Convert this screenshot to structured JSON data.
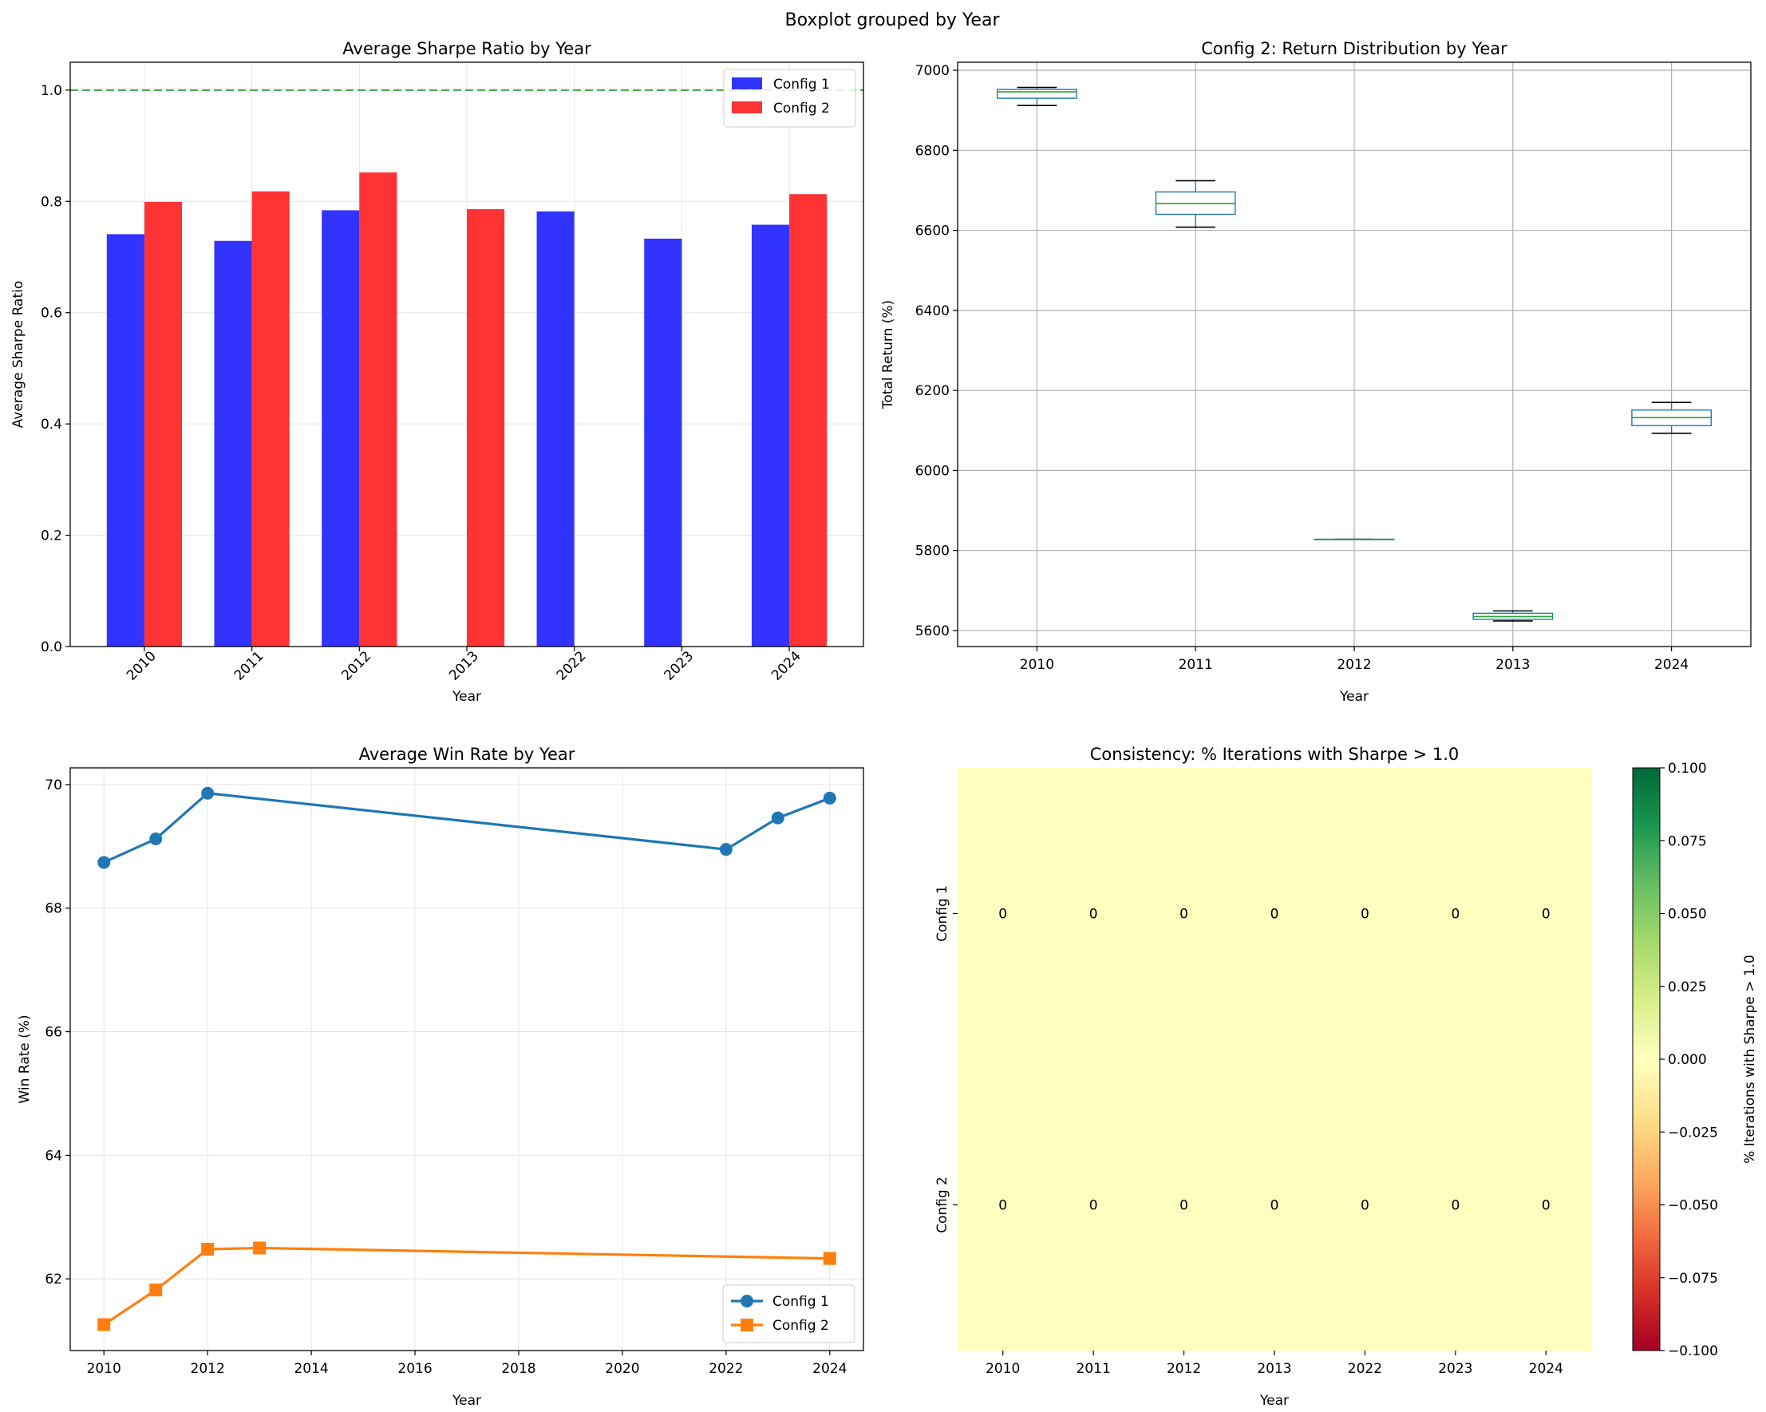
{
  "figure": {
    "suptitle": "Boxplot grouped by Year"
  },
  "chart_data": [
    {
      "type": "bar",
      "title": "Average Sharpe Ratio by Year",
      "xlabel": "Year",
      "ylabel": "Average Sharpe Ratio",
      "categories": [
        "2010",
        "2011",
        "2012",
        "2013",
        "2022",
        "2023",
        "2024"
      ],
      "series": [
        {
          "name": "Config 1",
          "color": "#3333ff",
          "values": [
            0.741,
            0.729,
            0.784,
            null,
            0.782,
            0.733,
            0.758
          ]
        },
        {
          "name": "Config 2",
          "color": "#ff3333",
          "values": [
            0.799,
            0.818,
            0.852,
            0.786,
            null,
            null,
            0.813
          ]
        }
      ],
      "reference_line": {
        "y": 1.0,
        "color": "#55aa55",
        "style": "dashed"
      },
      "ylim": [
        0,
        1.05
      ],
      "yticks": [
        0.0,
        0.2,
        0.4,
        0.6,
        0.8,
        1.0
      ],
      "ytick_labels": [
        "0.0",
        "0.2",
        "0.4",
        "0.6",
        "0.8",
        "1.0"
      ],
      "grid": true,
      "legend": "top-right"
    },
    {
      "type": "box",
      "title": "Config 2: Return Distribution by Year",
      "xlabel": "Year",
      "ylabel": "Total Return (%)",
      "categories": [
        "2010",
        "2011",
        "2012",
        "2013",
        "2024"
      ],
      "boxes": [
        {
          "min": 6912,
          "q1": 6930,
          "median": 6946,
          "q3": 6952,
          "max": 6957
        },
        {
          "min": 6608,
          "q1": 6640,
          "median": 6667,
          "q3": 6696,
          "max": 6724
        },
        {
          "min": 5828,
          "q1": 5828,
          "median": 5828,
          "q3": 5828,
          "max": 5828
        },
        {
          "min": 5624,
          "q1": 5628,
          "median": 5635,
          "q3": 5643,
          "max": 5649
        },
        {
          "min": 6093,
          "q1": 6112,
          "median": 6132,
          "q3": 6151,
          "max": 6170
        }
      ],
      "ylim": [
        5560,
        7020
      ],
      "yticks": [
        5600,
        5800,
        6000,
        6200,
        6400,
        6600,
        6800,
        7000
      ],
      "ytick_labels": [
        "5600",
        "5800",
        "6000",
        "6200",
        "6400",
        "6600",
        "6800",
        "7000"
      ],
      "box_color": "#1f77b4",
      "median_color": "#2ca02c",
      "grid": true
    },
    {
      "type": "line",
      "title": "Average Win Rate by Year",
      "xlabel": "Year",
      "ylabel": "Win Rate (%)",
      "series": [
        {
          "name": "Config 1",
          "color": "#1f77b4",
          "marker": "circle",
          "x": [
            2010,
            2011,
            2012,
            2022,
            2023,
            2024
          ],
          "y": [
            68.74,
            69.12,
            69.86,
            68.95,
            69.46,
            69.78
          ]
        },
        {
          "name": "Config 2",
          "color": "#ff7f0e",
          "marker": "square",
          "x": [
            2010,
            2011,
            2012,
            2013,
            2024
          ],
          "y": [
            61.26,
            61.82,
            62.48,
            62.5,
            62.33
          ]
        }
      ],
      "xlim": [
        2009.35,
        2024.65
      ],
      "ylim": [
        60.84,
        70.27
      ],
      "xticks": [
        2010,
        2012,
        2014,
        2016,
        2018,
        2020,
        2022,
        2024
      ],
      "xtick_labels": [
        "2010",
        "2012",
        "2014",
        "2016",
        "2018",
        "2020",
        "2022",
        "2024"
      ],
      "yticks": [
        62,
        64,
        66,
        68,
        70
      ],
      "ytick_labels": [
        "62",
        "64",
        "66",
        "68",
        "70"
      ],
      "grid": true,
      "legend": "bottom-right"
    },
    {
      "type": "heatmap",
      "title": "Consistency: % Iterations with Sharpe > 1.0",
      "xlabel": "Year",
      "columns": [
        "2010",
        "2011",
        "2012",
        "2013",
        "2022",
        "2023",
        "2024"
      ],
      "rows": [
        "Config 1",
        "Config 2"
      ],
      "values": [
        [
          0,
          0,
          0,
          0,
          0,
          0,
          0
        ],
        [
          0,
          0,
          0,
          0,
          0,
          0,
          0
        ]
      ],
      "cell_labels": [
        [
          "0",
          "0",
          "0",
          "0",
          "0",
          "0",
          "0"
        ],
        [
          "0",
          "0",
          "0",
          "0",
          "0",
          "0",
          "0"
        ]
      ],
      "cell_color": "#feffbe",
      "colormap": "RdYlGn",
      "colorbar": {
        "label": "% Iterations with Sharpe > 1.0",
        "range": [
          -0.1,
          0.1
        ],
        "ticks": [
          0.1,
          0.075,
          0.05,
          0.025,
          0.0,
          -0.025,
          -0.05,
          -0.075,
          -0.1
        ],
        "tick_labels": [
          "0.100",
          "0.075",
          "0.050",
          "0.025",
          "0.000",
          "−0.025",
          "−0.050",
          "−0.075",
          "−0.100"
        ]
      }
    }
  ]
}
